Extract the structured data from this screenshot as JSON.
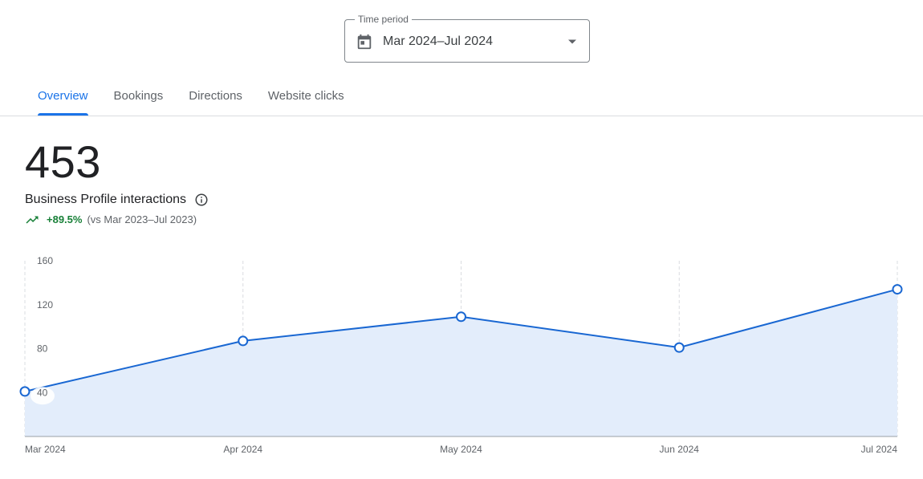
{
  "time_period": {
    "label": "Time period",
    "value": "Mar 2024–Jul 2024",
    "icons": {
      "calendar": "calendar-icon",
      "dropdown": "arrow-drop-down-icon"
    }
  },
  "tabs": [
    {
      "label": "Overview",
      "active": true
    },
    {
      "label": "Bookings",
      "active": false
    },
    {
      "label": "Directions",
      "active": false
    },
    {
      "label": "Website clicks",
      "active": false
    }
  ],
  "metric": {
    "value": "453",
    "label": "Business Profile interactions",
    "change": "+89.5%",
    "comparison": "(vs Mar 2023–Jul 2023)",
    "icons": {
      "info": "info-icon",
      "trend": "trending-up-icon"
    }
  },
  "colors": {
    "accent": "#1a73e8",
    "line": "#1967d2",
    "area_fill": "#e3edfb",
    "positive": "#188038",
    "text_secondary": "#5f6368"
  },
  "chart_data": {
    "type": "area",
    "categories": [
      "Mar 2024",
      "Apr 2024",
      "May 2024",
      "Jun 2024",
      "Jul 2024"
    ],
    "series": [
      {
        "values": [
          41,
          87,
          109,
          81,
          134
        ]
      }
    ],
    "ylim": [
      0,
      160
    ],
    "yticks": [
      40,
      80,
      120,
      160
    ],
    "grid": "vertical-dashed"
  }
}
